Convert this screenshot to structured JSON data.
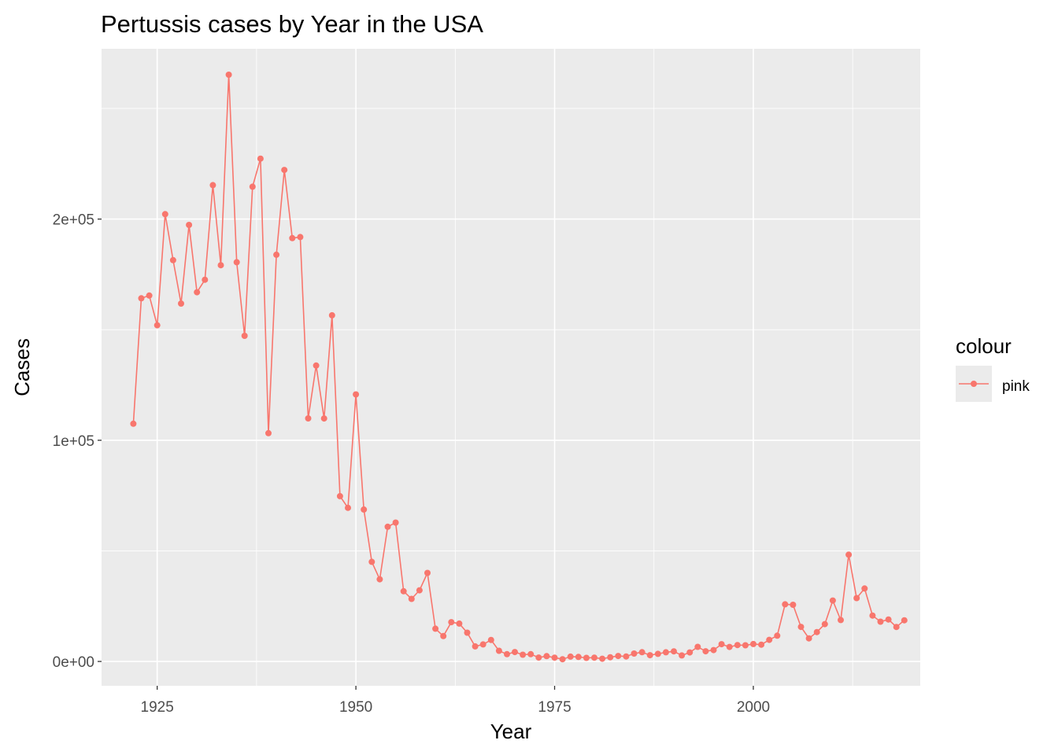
{
  "chart_data": {
    "type": "line",
    "title": "Pertussis cases by Year in the USA",
    "xlabel": "Year",
    "ylabel": "Cases",
    "xlim": [
      1918,
      2021
    ],
    "ylim": [
      -11000,
      277000
    ],
    "x_ticks": [
      1925,
      1950,
      1975,
      2000
    ],
    "x_tick_labels": [
      "1925",
      "1950",
      "1975",
      "2000"
    ],
    "x_minor_ticks": [
      1937.5,
      1962.5,
      1987.5,
      2012.5
    ],
    "y_ticks": [
      0,
      100000,
      200000
    ],
    "y_tick_labels": [
      "0e+00",
      "1e+05",
      "2e+05"
    ],
    "y_minor_ticks": [
      50000,
      150000,
      250000
    ],
    "grid": true,
    "legend": {
      "title": "colour",
      "placement": "right",
      "entries": [
        "pink"
      ]
    },
    "series": [
      {
        "name": "pink",
        "color": "#F8766D",
        "x": [
          1922,
          1923,
          1924,
          1925,
          1926,
          1927,
          1928,
          1929,
          1930,
          1931,
          1932,
          1933,
          1934,
          1935,
          1936,
          1937,
          1938,
          1939,
          1940,
          1941,
          1942,
          1943,
          1944,
          1945,
          1946,
          1947,
          1948,
          1949,
          1950,
          1951,
          1952,
          1953,
          1954,
          1955,
          1956,
          1957,
          1958,
          1959,
          1960,
          1961,
          1962,
          1963,
          1964,
          1965,
          1966,
          1967,
          1968,
          1969,
          1970,
          1971,
          1972,
          1973,
          1974,
          1975,
          1976,
          1977,
          1978,
          1979,
          1980,
          1981,
          1982,
          1983,
          1984,
          1985,
          1986,
          1987,
          1988,
          1989,
          1990,
          1991,
          1992,
          1993,
          1994,
          1995,
          1996,
          1997,
          1998,
          1999,
          2000,
          2001,
          2002,
          2003,
          2004,
          2005,
          2006,
          2007,
          2008,
          2009,
          2010,
          2011,
          2012,
          2013,
          2014,
          2015,
          2016,
          2017,
          2018,
          2019
        ],
        "values": [
          107473,
          164191,
          165418,
          152003,
          202210,
          181411,
          161799,
          197371,
          166914,
          172559,
          215343,
          179135,
          265269,
          180518,
          147237,
          214652,
          227319,
          103188,
          183866,
          222202,
          191383,
          191890,
          109873,
          133792,
          109860,
          156517,
          74715,
          69479,
          120718,
          68687,
          45030,
          37129,
          60886,
          62786,
          31732,
          28295,
          32148,
          40005,
          14809,
          11468,
          17749,
          17135,
          13005,
          6799,
          7717,
          9718,
          4810,
          3285,
          4249,
          3036,
          3287,
          1759,
          2402,
          1738,
          1010,
          2177,
          2063,
          1623,
          1730,
          1248,
          1895,
          2463,
          2276,
          3589,
          4195,
          2823,
          3450,
          4157,
          4570,
          2719,
          4083,
          6586,
          4617,
          5137,
          7796,
          6564,
          7405,
          7298,
          7867,
          7580,
          9771,
          11647,
          25827,
          25616,
          15632,
          10454,
          13278,
          16858,
          27550,
          18719,
          48277,
          28639,
          32971,
          20762,
          17972,
          18975,
          15609,
          18617
        ]
      }
    ]
  }
}
